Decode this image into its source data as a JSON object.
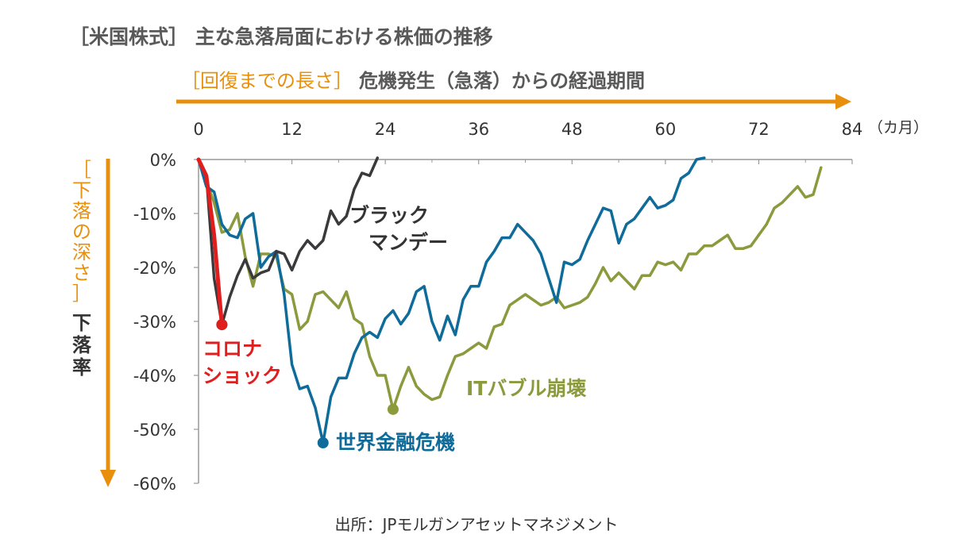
{
  "title": "［米国株式］ 主な急落局面における株価の推移",
  "x_axis": {
    "label_bracket": "［回復までの長さ］",
    "label_text": "危機発生（急落）からの経過期間",
    "unit": "（カ月）"
  },
  "y_axis": {
    "label_bracket_chars": [
      "［",
      "下",
      "落",
      "の",
      "深",
      "さ",
      "］"
    ],
    "label_text_chars": [
      "下",
      "落",
      "率"
    ]
  },
  "source": "出所：JPモルガンアセットマネジメント",
  "colors": {
    "axis_arrow": "#E8900E",
    "corona": "#E01E1E",
    "black_monday": "#3A3A3C",
    "gfc": "#0F6C9A",
    "it_bubble": "#8A9A3C",
    "axis_line": "#999999"
  },
  "chart_data": {
    "type": "line",
    "title": "［米国株式］ 主な急落局面における株価の推移",
    "xlabel": "危機発生（急落）からの経過期間",
    "ylabel": "下落率",
    "xlim": [
      0,
      84
    ],
    "ylim": [
      -60,
      0
    ],
    "x_ticks": [
      "0",
      "12",
      "24",
      "36",
      "48",
      "60",
      "72",
      "84"
    ],
    "y_ticks": [
      "0%",
      "-10%",
      "-20%",
      "-30%",
      "-40%",
      "-50%",
      "-60%"
    ],
    "series": [
      {
        "name": "コロナショック",
        "label_lines": [
          "コロナ",
          "ショック"
        ],
        "color": "#E01E1E",
        "x": [
          0,
          1,
          2,
          3
        ],
        "y": [
          0,
          -3,
          -14,
          -30.6
        ],
        "marker": [
          3,
          -30.6
        ]
      },
      {
        "name": "ブラックマンデー",
        "label_lines": [
          "ブラック",
          "マンデー"
        ],
        "color": "#3A3A3C",
        "x": [
          0,
          1,
          2,
          3,
          4,
          5,
          6,
          7,
          8,
          9,
          10,
          11,
          12,
          13,
          14,
          15,
          16,
          17,
          18,
          19,
          20,
          21,
          22,
          23
        ],
        "y": [
          0,
          -3,
          -22,
          -30.6,
          -25.5,
          -21.5,
          -18.5,
          -22,
          -21,
          -20.5,
          -17,
          -17.5,
          -20.5,
          -17,
          -15,
          -16.5,
          -15,
          -9.5,
          -12,
          -10.5,
          -5.5,
          -2.5,
          -3,
          0.3
        ],
        "marker": [
          3,
          -30.6
        ]
      },
      {
        "name": "世界金融危機",
        "label_lines": [
          "世界金融危機"
        ],
        "color": "#0F6C9A",
        "x": [
          0,
          1,
          2,
          3,
          4,
          5,
          6,
          7,
          8,
          9,
          10,
          11,
          12,
          13,
          14,
          15,
          16,
          17,
          18,
          19,
          20,
          21,
          22,
          23,
          24,
          25,
          26,
          27,
          28,
          29,
          30,
          31,
          32,
          33,
          34,
          35,
          36,
          37,
          38,
          39,
          40,
          41,
          42,
          43,
          44,
          45,
          46,
          47,
          48,
          49,
          50,
          51,
          52,
          53,
          54,
          55,
          56,
          57,
          58,
          59,
          60,
          61,
          62,
          63,
          64,
          65
        ],
        "y": [
          0,
          -5,
          -6,
          -12,
          -14,
          -14.5,
          -11,
          -10,
          -20,
          -18,
          -17,
          -25,
          -38,
          -42.5,
          -42,
          -46,
          -52.5,
          -44,
          -40.5,
          -40.5,
          -36,
          -33,
          -32,
          -33,
          -29.5,
          -28,
          -30.5,
          -28.5,
          -24.5,
          -23.5,
          -30,
          -33.5,
          -29,
          -32.5,
          -26,
          -23.5,
          -23.5,
          -19,
          -17,
          -14.5,
          -14.5,
          -12,
          -13.5,
          -15,
          -17.5,
          -22,
          -26.5,
          -19,
          -19.5,
          -18.5,
          -15,
          -12,
          -9,
          -9.5,
          -15.5,
          -12,
          -11,
          -9,
          -7,
          -9,
          -8.5,
          -7.5,
          -3.5,
          -2.5,
          0,
          0.3
        ],
        "marker": [
          16,
          -52.5
        ]
      },
      {
        "name": "ITバブル崩壊",
        "label_lines": [
          "ITバブル崩壊"
        ],
        "color": "#8A9A3C",
        "x": [
          0,
          1,
          2,
          3,
          4,
          5,
          6,
          7,
          8,
          9,
          10,
          11,
          12,
          13,
          14,
          15,
          16,
          17,
          18,
          19,
          20,
          21,
          22,
          23,
          24,
          25,
          26,
          27,
          28,
          29,
          30,
          31,
          32,
          33,
          34,
          35,
          36,
          37,
          38,
          39,
          40,
          41,
          42,
          43,
          44,
          45,
          46,
          47,
          48,
          49,
          50,
          51,
          52,
          53,
          54,
          55,
          56,
          57,
          58,
          59,
          60,
          61,
          62,
          63,
          64,
          65,
          66,
          67,
          68,
          69,
          70,
          71,
          72,
          73,
          74,
          75,
          76,
          77,
          78,
          79,
          80
        ],
        "y": [
          0,
          -4,
          -8,
          -13.5,
          -13,
          -10,
          -18,
          -23.5,
          -17.5,
          -17.5,
          -18,
          -24,
          -25,
          -31.5,
          -30,
          -25,
          -24.5,
          -26,
          -27.5,
          -24.5,
          -29.5,
          -30.5,
          -36.5,
          -40,
          -40,
          -46.3,
          -42,
          -38.5,
          -42,
          -43.5,
          -44.5,
          -44,
          -40,
          -36.5,
          -36,
          -35,
          -34,
          -35,
          -31,
          -30.5,
          -27,
          -26,
          -25,
          -26,
          -27,
          -26.5,
          -25.5,
          -27.5,
          -27,
          -26.5,
          -25.5,
          -23,
          -20,
          -22.5,
          -21,
          -22.5,
          -24,
          -21.5,
          -21.5,
          -19,
          -19.5,
          -19,
          -20.5,
          -17.5,
          -17.5,
          -16,
          -16,
          -15,
          -14,
          -16.5,
          -16.5,
          -16,
          -14,
          -12,
          -9,
          -8,
          -6.5,
          -5,
          -7,
          -6.5,
          -1.5
        ],
        "marker": [
          25,
          -46.3
        ]
      }
    ]
  }
}
